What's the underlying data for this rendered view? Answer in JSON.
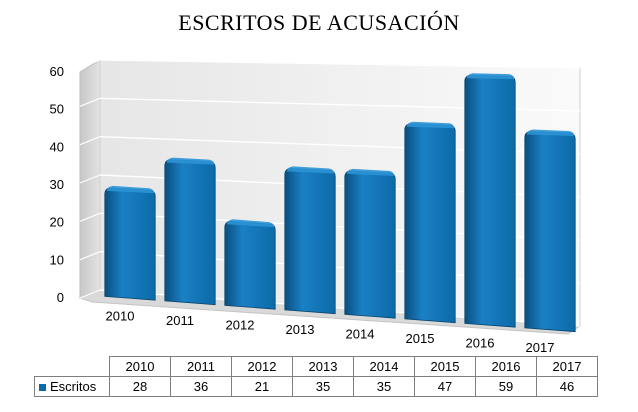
{
  "chart_data": {
    "type": "bar",
    "title": "ESCRITOS DE ACUSACIÓN",
    "categories": [
      "2010",
      "2011",
      "2012",
      "2013",
      "2014",
      "2015",
      "2016",
      "2017"
    ],
    "series": [
      {
        "name": "Escritos",
        "values": [
          28,
          36,
          21,
          35,
          35,
          47,
          59,
          46
        ],
        "color": "#0b6aa8"
      }
    ],
    "ylim": [
      0,
      60
    ],
    "yticks": [
      0,
      10,
      20,
      30,
      40,
      50,
      60
    ],
    "grid": true,
    "legend": "data-table"
  }
}
